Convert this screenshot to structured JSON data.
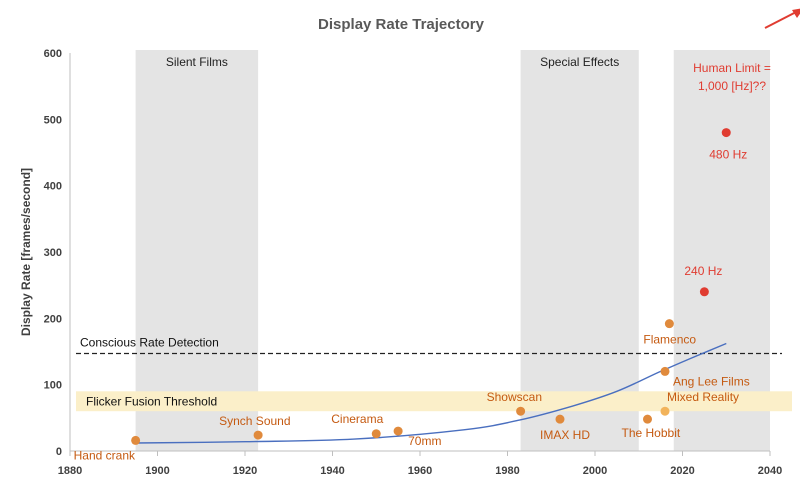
{
  "chart_data": {
    "type": "scatter",
    "title": "Display Rate Trajectory",
    "xlabel": "",
    "ylabel": "Display Rate [frames/second]",
    "xlim": [
      1880,
      2040
    ],
    "ylim": [
      0,
      600
    ],
    "x_ticks": [
      1880,
      1900,
      1920,
      1940,
      1960,
      1980,
      2000,
      2020,
      2040
    ],
    "y_ticks": [
      0,
      100,
      200,
      300,
      400,
      500,
      600
    ],
    "grid": false,
    "regions": [
      {
        "label": "Silent Films",
        "x": [
          1895,
          1923
        ]
      },
      {
        "label": "Special Effects",
        "x": [
          1983,
          2010
        ]
      },
      {
        "label": "",
        "x": [
          2018,
          2040
        ]
      }
    ],
    "flicker_band": {
      "label": "Flicker Fusion Threshold",
      "y": [
        60,
        90
      ]
    },
    "conscious_line": {
      "label": "Conscious Rate Detection",
      "y": 147
    },
    "human_limit_label": [
      "Human  Limit =",
      "1,000 [Hz]??"
    ],
    "trend": {
      "x": [
        1895,
        1920,
        1945,
        1970,
        1983,
        1995,
        2005,
        2015,
        2022,
        2030
      ],
      "y": [
        12,
        14,
        18,
        32,
        47,
        68,
        90,
        120,
        140,
        162
      ]
    },
    "points": [
      {
        "label": "Hand crank",
        "x": 1895,
        "y": 16,
        "color": "#e08a3c"
      },
      {
        "label": "Synch Sound",
        "x": 1923,
        "y": 24,
        "color": "#e08a3c"
      },
      {
        "label": "Cinerama",
        "x": 1950,
        "y": 26,
        "color": "#e08a3c"
      },
      {
        "label": "70mm",
        "x": 1955,
        "y": 30,
        "color": "#e08a3c"
      },
      {
        "label": "Showscan",
        "x": 1983,
        "y": 60,
        "color": "#e08a3c"
      },
      {
        "label": "IMAX HD",
        "x": 1992,
        "y": 48,
        "color": "#e08a3c"
      },
      {
        "label": "The Hobbit",
        "x": 2012,
        "y": 48,
        "color": "#e08a3c"
      },
      {
        "label": "Mixed Reality",
        "x": 2016,
        "y": 60,
        "color": "#f2b35b"
      },
      {
        "label": "Ang Lee Films",
        "x": 2016,
        "y": 120,
        "color": "#e08a3c"
      },
      {
        "label": "Flamenco",
        "x": 2017,
        "y": 192,
        "color": "#e08a3c"
      },
      {
        "label": "240 Hz",
        "x": 2025,
        "y": 240,
        "color": "#e03c31"
      },
      {
        "label": "480 Hz",
        "x": 2030,
        "y": 480,
        "color": "#e03c31"
      }
    ],
    "colors": {
      "region": "#e4e4e4",
      "band": "#fbefc9",
      "trend": "#4a6fbf",
      "orange_text": "#c55a11",
      "red": "#e03c31"
    }
  }
}
